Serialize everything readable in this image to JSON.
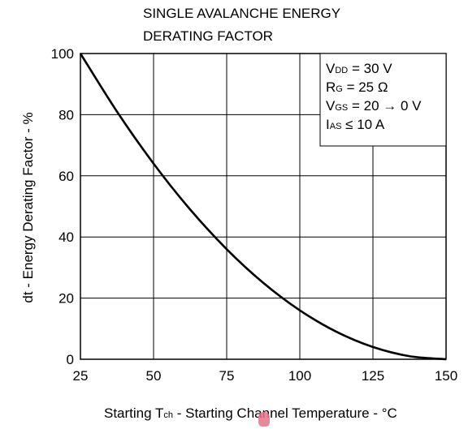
{
  "chart_data": {
    "type": "line",
    "title_lines": [
      "SINGLE AVALANCHE ENERGY",
      "DERATING FACTOR"
    ],
    "xlabel": {
      "prefix": "Starting T",
      "sub": "ch",
      "suffix": " - Starting Channel Temperature - °C"
    },
    "ylabel": "dt - Energy Derating Factor - %",
    "xlim": [
      25,
      150
    ],
    "ylim": [
      0,
      100
    ],
    "xticks": [
      "25",
      "50",
      "75",
      "100",
      "125",
      "150"
    ],
    "yticks": [
      "0",
      "20",
      "40",
      "60",
      "80",
      "100"
    ],
    "grid": true,
    "series": [
      {
        "x": [
          25,
          37.5,
          50,
          62.5,
          75,
          87.5,
          100,
          112.5,
          125,
          137.5,
          150
        ],
        "y": [
          100,
          81,
          64,
          49,
          36,
          25,
          16,
          9,
          4,
          1,
          0
        ]
      }
    ],
    "conditions": [
      {
        "main": "V",
        "sub": "DD",
        "rest": " = 30 V"
      },
      {
        "main": "R",
        "sub": "G",
        "rest": " = 25 Ω"
      },
      {
        "main": "V",
        "sub": "GS",
        "rest": " = 20 → 0 V"
      },
      {
        "main": "I",
        "sub": "AS",
        "rest": " ≤ 10 A"
      }
    ],
    "colors": {
      "line": "#000000",
      "grid": "#000000",
      "background": "#ffffff"
    }
  }
}
